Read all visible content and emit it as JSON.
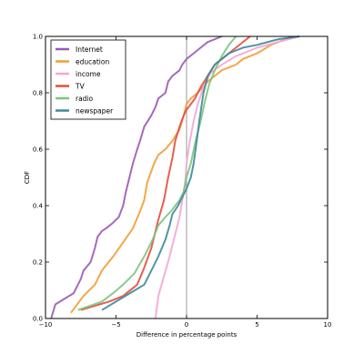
{
  "chart_data": {
    "type": "line",
    "title": "",
    "xlabel": "Difference in percentage points",
    "ylabel": "CDF",
    "xlim": [
      -10,
      10
    ],
    "ylim": [
      0.0,
      1.0
    ],
    "xticks": [
      -10,
      -5,
      0,
      5,
      10
    ],
    "yticks": [
      0.0,
      0.2,
      0.4,
      0.6,
      0.8,
      1.0
    ],
    "xtick_labels": [
      "−10",
      "−5",
      "0",
      "5",
      "10"
    ],
    "ytick_labels": [
      "0.0",
      "0.2",
      "0.4",
      "0.6",
      "0.8",
      "1.0"
    ],
    "grid": false,
    "vertical_reference_line": 0,
    "legend_position": "top-left",
    "series": [
      {
        "name": "Internet",
        "color": "#9b59b6",
        "x": [
          -9.6,
          -9.3,
          -8.0,
          -7.5,
          -7.3,
          -6.8,
          -6.5,
          -6.3,
          -6.0,
          -5.7,
          -5.2,
          -4.8,
          -4.5,
          -4.3,
          -3.8,
          -3.5,
          -3.3,
          -3.0,
          -2.5,
          -2.2,
          -2.0,
          -1.5,
          -1.3,
          -1.0,
          -0.5,
          -0.3,
          0.0,
          0.5,
          1.0,
          1.5,
          2.5
        ],
        "y": [
          0.0,
          0.05,
          0.09,
          0.14,
          0.17,
          0.2,
          0.25,
          0.29,
          0.31,
          0.32,
          0.34,
          0.36,
          0.4,
          0.45,
          0.55,
          0.6,
          0.63,
          0.68,
          0.72,
          0.75,
          0.78,
          0.8,
          0.84,
          0.86,
          0.88,
          0.9,
          0.92,
          0.94,
          0.96,
          0.98,
          1.0
        ]
      },
      {
        "name": "education",
        "color": "#f39c34",
        "x": [
          -8.2,
          -7.3,
          -6.5,
          -6.0,
          -5.2,
          -4.5,
          -3.8,
          -3.3,
          -3.0,
          -2.8,
          -2.3,
          -2.0,
          -1.5,
          -1.0,
          -0.5,
          -0.2,
          0.0,
          0.3,
          0.8,
          1.5,
          2.5,
          3.5,
          4.0,
          5.0,
          6.0,
          7.5
        ],
        "y": [
          0.02,
          0.08,
          0.12,
          0.17,
          0.22,
          0.27,
          0.32,
          0.38,
          0.42,
          0.48,
          0.55,
          0.58,
          0.6,
          0.63,
          0.67,
          0.72,
          0.76,
          0.78,
          0.8,
          0.84,
          0.88,
          0.9,
          0.92,
          0.94,
          0.97,
          1.0
        ]
      },
      {
        "name": "income",
        "color": "#f4a6d7",
        "x": [
          -2.2,
          -2.0,
          -1.6,
          -1.2,
          -0.8,
          -0.5,
          -0.3,
          -0.1,
          0.0,
          0.2,
          0.5,
          0.8,
          1.2,
          1.7,
          2.5,
          3.5,
          5.0,
          6.5,
          8.0
        ],
        "y": [
          0.0,
          0.08,
          0.15,
          0.22,
          0.3,
          0.36,
          0.42,
          0.48,
          0.55,
          0.62,
          0.7,
          0.76,
          0.82,
          0.87,
          0.9,
          0.93,
          0.96,
          0.98,
          1.0
        ]
      },
      {
        "name": "TV",
        "color": "#e74c3c",
        "x": [
          -7.5,
          -5.5,
          -4.5,
          -3.5,
          -3.0,
          -2.5,
          -2.0,
          -1.6,
          -1.3,
          -1.0,
          -0.8,
          -0.5,
          -0.2,
          0.0,
          0.3,
          0.6,
          1.0,
          1.5,
          2.0,
          2.5,
          3.0,
          3.5,
          4.5
        ],
        "y": [
          0.03,
          0.06,
          0.08,
          0.12,
          0.18,
          0.25,
          0.35,
          0.42,
          0.5,
          0.57,
          0.63,
          0.68,
          0.72,
          0.74,
          0.76,
          0.78,
          0.82,
          0.86,
          0.9,
          0.92,
          0.94,
          0.96,
          1.0
        ]
      },
      {
        "name": "radio",
        "color": "#7cc47f",
        "x": [
          -7.7,
          -6.0,
          -5.2,
          -4.5,
          -3.7,
          -3.0,
          -2.4,
          -2.0,
          -1.5,
          -1.1,
          -0.8,
          -0.5,
          -0.2,
          0.0,
          0.3,
          0.6,
          1.0,
          1.3,
          1.6,
          2.0,
          2.5,
          3.0,
          3.5
        ],
        "y": [
          0.03,
          0.06,
          0.09,
          0.12,
          0.16,
          0.22,
          0.28,
          0.33,
          0.36,
          0.38,
          0.4,
          0.42,
          0.45,
          0.5,
          0.55,
          0.62,
          0.7,
          0.77,
          0.83,
          0.88,
          0.93,
          0.97,
          1.0
        ]
      },
      {
        "name": "newspaper",
        "color": "#3d8a9a",
        "x": [
          -6.0,
          -5.0,
          -4.0,
          -3.0,
          -2.5,
          -2.0,
          -1.5,
          -1.2,
          -1.0,
          -0.6,
          -0.3,
          0.0,
          0.3,
          0.5,
          0.7,
          0.9,
          1.2,
          1.5,
          2.0,
          2.5,
          3.0,
          4.0,
          5.0,
          6.5,
          8.0
        ],
        "y": [
          0.03,
          0.06,
          0.09,
          0.12,
          0.17,
          0.22,
          0.28,
          0.33,
          0.37,
          0.4,
          0.43,
          0.46,
          0.5,
          0.55,
          0.62,
          0.7,
          0.8,
          0.86,
          0.9,
          0.92,
          0.94,
          0.96,
          0.97,
          0.99,
          1.0
        ]
      }
    ]
  }
}
